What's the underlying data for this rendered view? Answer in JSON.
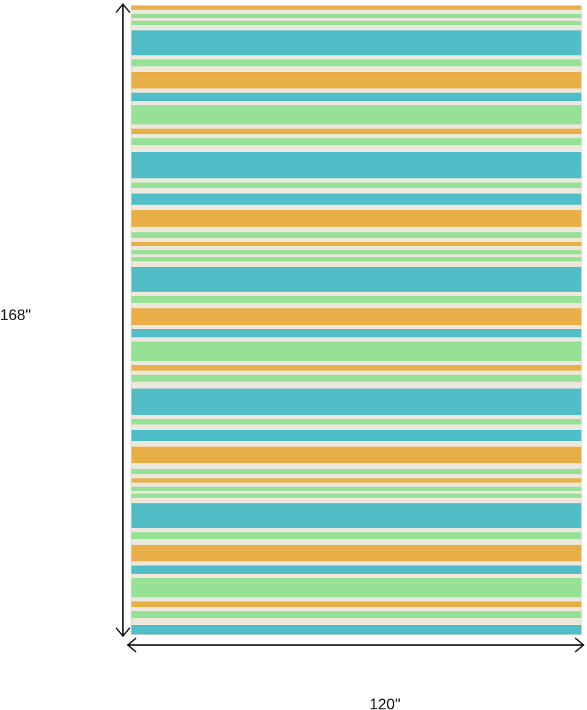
{
  "dimensions": {
    "height_label": "168''",
    "width_label": "120''"
  }
}
